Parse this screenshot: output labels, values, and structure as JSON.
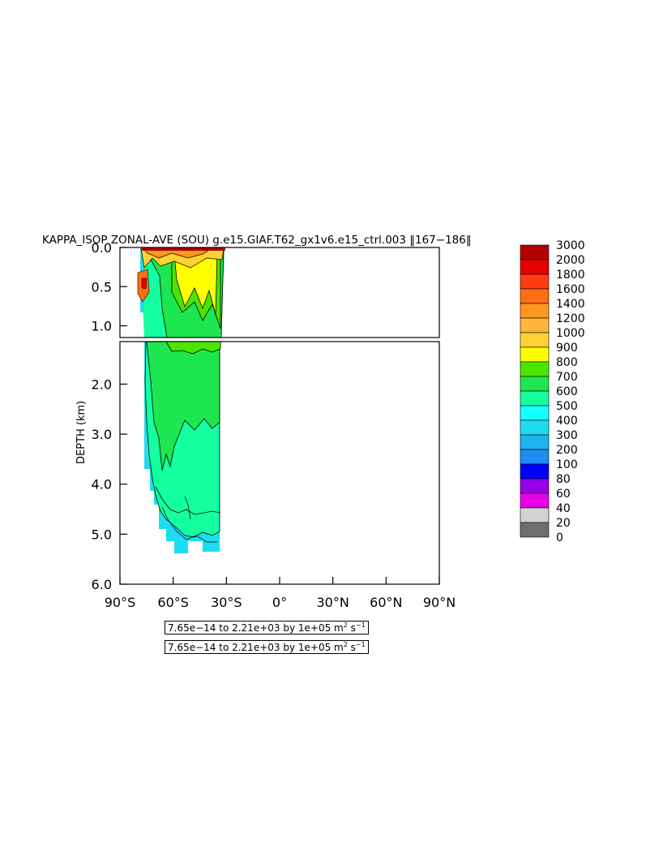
{
  "chart_data": {
    "type": "heatmap",
    "title": "KAPPA_ISOP ZONAL-AVE (SOU) g.e15.GIAF.T62_gx1v6.e15_ctrl.003 ‖167−186‖",
    "xlabel": "",
    "ylabel": "DEPTH (km)",
    "xlim": [
      -90,
      90
    ],
    "ylim": [
      6.0,
      0.0
    ],
    "x_tick_labels": [
      "90°S",
      "60°S",
      "30°S",
      "0°",
      "30°N",
      "60°N",
      "90°N"
    ],
    "y_tick_labels_upper": [
      "0.0",
      "0.5",
      "1.0"
    ],
    "y_tick_labels_lower": [
      "2.0",
      "3.0",
      "4.0",
      "5.0",
      "6.0"
    ],
    "colorbar": {
      "levels": [
        "3000",
        "2000",
        "1800",
        "1600",
        "1400",
        "1200",
        "1000",
        "900",
        "800",
        "700",
        "600",
        "500",
        "400",
        "300",
        "200",
        "100",
        "80",
        "60",
        "40",
        "20",
        "0"
      ],
      "colors": [
        "#b40000",
        "#e60000",
        "#ff3c14",
        "#ff6e14",
        "#ff961e",
        "#ffb43c",
        "#ffd232",
        "#ffff00",
        "#4be600",
        "#1ee650",
        "#14ffa0",
        "#14ffff",
        "#1edcf0",
        "#1eb4f0",
        "#1e8cf0",
        "#0000ff",
        "#9600e6",
        "#e600e6",
        "#d2d2d2",
        "#6e6e6e"
      ]
    },
    "notes": [
      {
        "text": "7.65e−14 to 2.21e+03 by 1e+05 m",
        "sup1": "2",
        "mid": " s",
        "sup2": "−1"
      },
      {
        "text": "7.65e−14 to 2.21e+03 by 1e+05 m",
        "sup1": "2",
        "mid": " s",
        "sup2": "−1"
      }
    ]
  }
}
